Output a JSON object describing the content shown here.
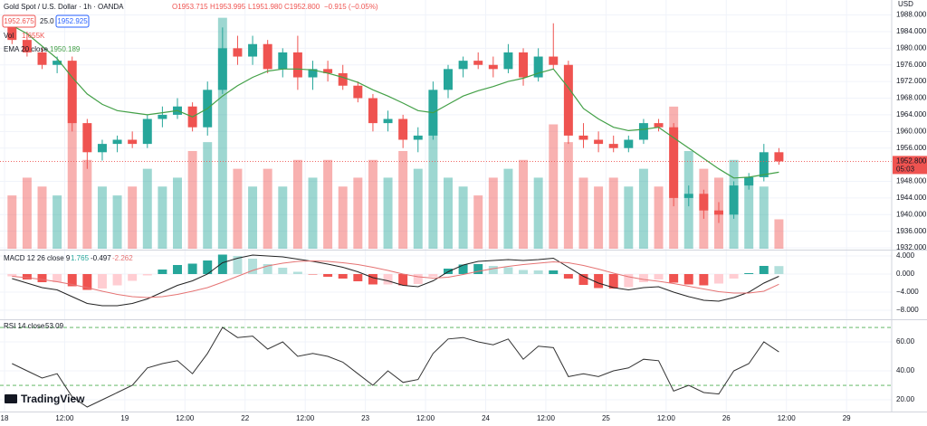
{
  "header": {
    "symbol": "Gold Spot / U.S. Dollar · 1h · OANDA",
    "open": "O1953.715",
    "high": "H1953.995",
    "low": "L1951.980",
    "close": "C1952.800",
    "change": "−0.915 (−0.05%)",
    "sell": "1952.675",
    "spread": "25.0",
    "buy": "1952.925",
    "currency": "USD",
    "countdown": "05:03",
    "logo": "TradingView"
  },
  "chart_data": [
    {
      "type": "candlestick",
      "title": "Gold Spot / U.S. Dollar · 1h · OANDA",
      "open": [
        1985,
        1982,
        1979,
        1976,
        1977,
        1962,
        1955,
        1957,
        1958,
        1957,
        1963,
        1964,
        1966,
        1961,
        1970,
        1980,
        1978,
        1981,
        1975,
        1979,
        1973,
        1975,
        1974,
        1971,
        1968,
        1962,
        1963,
        1958,
        1959,
        1970,
        1975,
        1977,
        1976,
        1975,
        1979,
        1973,
        1978,
        1976,
        1959,
        1958,
        1957,
        1956,
        1958,
        1962,
        1961,
        1944,
        1945,
        1941,
        1940,
        1947,
        1949,
        1955
      ],
      "high": [
        1987,
        1984,
        1980,
        1978,
        1978,
        1963,
        1958,
        1959,
        1960,
        1964,
        1966,
        1968,
        1967,
        1972,
        1985,
        1983,
        1983,
        1982,
        1980,
        1983,
        1977,
        1977,
        1976,
        1972,
        1969,
        1965,
        1964,
        1961,
        1972,
        1976,
        1978,
        1979,
        1978,
        1981,
        1980,
        1980,
        1986,
        1977,
        1962,
        1960,
        1959,
        1959,
        1963,
        1963,
        1962,
        1947,
        1946,
        1943,
        1948,
        1950,
        1957,
        1956
      ],
      "low": [
        1981,
        1978,
        1975,
        1974,
        1960,
        1951,
        1953,
        1955,
        1956,
        1956,
        1961,
        1963,
        1960,
        1959,
        1969,
        1976,
        1976,
        1974,
        1973,
        1970,
        1970,
        1972,
        1970,
        1967,
        1960,
        1960,
        1956,
        1955,
        1958,
        1968,
        1973,
        1975,
        1973,
        1974,
        1971,
        1972,
        1975,
        1957,
        1956,
        1955,
        1955,
        1955,
        1957,
        1960,
        1942,
        1942,
        1939,
        1938,
        1939,
        1946,
        1948,
        1952
      ],
      "close": [
        1982,
        1979,
        1976,
        1977,
        1962,
        1955,
        1957,
        1958,
        1957,
        1963,
        1964,
        1966,
        1961,
        1970,
        1980,
        1978,
        1981,
        1975,
        1979,
        1973,
        1975,
        1974,
        1971,
        1968,
        1962,
        1963,
        1958,
        1959,
        1970,
        1975,
        1977,
        1976,
        1975,
        1979,
        1973,
        1978,
        1976,
        1959,
        1958,
        1957,
        1956,
        1958,
        1962,
        1961,
        1944,
        1945,
        1941,
        1940,
        1947,
        1949,
        1955,
        1952.8
      ],
      "up_color": "#26a69a",
      "down_color": "#ef5350",
      "series": [
        {
          "name": "EMA 20 close",
          "color": "#43a047",
          "values": [
            1985.5,
            1983.5,
            1980.5,
            1977.5,
            1973,
            1969,
            1966.5,
            1965,
            1964.5,
            1964,
            1964.5,
            1965,
            1963.5,
            1965.5,
            1968.5,
            1971,
            1973,
            1974.5,
            1975,
            1975,
            1974.8,
            1974,
            1973,
            1971.8,
            1970,
            1968.5,
            1966.8,
            1965,
            1964.5,
            1966.5,
            1968.5,
            1969.8,
            1970.8,
            1972,
            1972.8,
            1974,
            1975,
            1970.5,
            1965.5,
            1963,
            1961,
            1960.2,
            1960.5,
            1961,
            1958.5,
            1956,
            1953.5,
            1951,
            1948.8,
            1949,
            1949.6,
            1950.189
          ]
        }
      ],
      "volume": {
        "name": "Vol",
        "last_label": "1.655K",
        "ylim": [
          0,
          14000
        ],
        "values": [
          3000,
          4000,
          3500,
          3000,
          9000,
          5000,
          3500,
          3000,
          3500,
          4500,
          3500,
          4000,
          5500,
          6000,
          13000,
          4500,
          3500,
          4500,
          3500,
          5000,
          4000,
          5000,
          3500,
          4000,
          5000,
          4000,
          5500,
          4500,
          7500,
          4000,
          3500,
          3000,
          4000,
          4500,
          5000,
          4000,
          7000,
          6000,
          4000,
          3500,
          4000,
          3500,
          4500,
          3500,
          8000,
          5500,
          4500,
          4000,
          5000,
          4000,
          3500,
          1655
        ]
      },
      "last_price": {
        "value": 1952.8,
        "label": "1952.800"
      },
      "ylim": [
        1931.8,
        1991.6
      ],
      "yticks": [
        {
          "value": 1988,
          "label": "1988.000"
        },
        {
          "value": 1984,
          "label": "1984.000"
        },
        {
          "value": 1980,
          "label": "1980.000"
        },
        {
          "value": 1976,
          "label": "1976.000"
        },
        {
          "value": 1972,
          "label": "1972.000"
        },
        {
          "value": 1968,
          "label": "1968.000"
        },
        {
          "value": 1964,
          "label": "1964.000"
        },
        {
          "value": 1960,
          "label": "1960.000"
        },
        {
          "value": 1956,
          "label": "1956.000"
        },
        {
          "value": 1948,
          "label": "1948.000"
        },
        {
          "value": 1944,
          "label": "1944.000"
        },
        {
          "value": 1940,
          "label": "1940.000"
        },
        {
          "value": 1936,
          "label": "1936.000"
        },
        {
          "value": 1932,
          "label": "1932.000"
        }
      ],
      "xlim": [
        -0.3,
        59
      ],
      "xticks": [
        {
          "value": 0,
          "label": "18"
        },
        {
          "value": 4,
          "label": "12:00"
        },
        {
          "value": 8,
          "label": "19"
        },
        {
          "value": 12,
          "label": "12:00"
        },
        {
          "value": 16,
          "label": "22"
        },
        {
          "value": 20,
          "label": "12:00"
        },
        {
          "value": 24,
          "label": "23"
        },
        {
          "value": 28,
          "label": "12:00"
        },
        {
          "value": 32,
          "label": "24"
        },
        {
          "value": 36,
          "label": "12:00"
        },
        {
          "value": 40,
          "label": "25"
        },
        {
          "value": 44,
          "label": "12:00"
        },
        {
          "value": 48,
          "label": "26"
        },
        {
          "value": 52,
          "label": "12:00"
        },
        {
          "value": 56,
          "label": "29"
        }
      ],
      "grid": true
    },
    {
      "type": "macd",
      "title": "MACD 12 26 close 9",
      "histogram": {
        "values": [
          -0.5,
          -1.2,
          -1.8,
          -1.8,
          -2.7,
          -3.5,
          -3.2,
          -2.5,
          -1.5,
          -0.3,
          1,
          2,
          2.3,
          3,
          4.3,
          4,
          3.4,
          2.2,
          1.4,
          0.5,
          -0.1,
          -0.6,
          -1,
          -1.6,
          -2.3,
          -2.3,
          -2.5,
          -2.2,
          -0.6,
          1.2,
          2.1,
          2.2,
          1.8,
          1.5,
          0.9,
          0.8,
          0.8,
          -1,
          -2.4,
          -3.1,
          -3.2,
          -2.9,
          -1.8,
          -1.2,
          -1.9,
          -2.3,
          -2.5,
          -2.1,
          -1,
          0.2,
          1.8,
          1.765
        ],
        "colors": [
          "#26a69a",
          "#b2dfdb",
          "#ffcdd2",
          "#ef5350"
        ]
      },
      "series": [
        {
          "name": "MACD",
          "color": "#222222",
          "values": [
            -1,
            -2,
            -3,
            -3.5,
            -5,
            -6.5,
            -7,
            -7,
            -6.5,
            -5.5,
            -4,
            -2.5,
            -1.5,
            0,
            2.5,
            3.5,
            4.2,
            4,
            3.8,
            3.3,
            2.8,
            2.2,
            1.5,
            0.5,
            -0.8,
            -1.5,
            -2.5,
            -2.8,
            -1.5,
            0.5,
            2,
            2.8,
            3,
            3.2,
            3,
            3.2,
            3.5,
            1.5,
            -0.5,
            -2,
            -3,
            -3.5,
            -3,
            -2.8,
            -4,
            -5,
            -5.8,
            -6,
            -5.2,
            -4,
            -2,
            -0.497
          ]
        },
        {
          "name": "Signal",
          "color": "#e57373",
          "values": [
            -0.5,
            -0.8,
            -1.2,
            -1.7,
            -2.3,
            -3,
            -3.8,
            -4.5,
            -5,
            -5.2,
            -5,
            -4.5,
            -3.8,
            -3,
            -1.8,
            -0.5,
            0.8,
            1.8,
            2.4,
            2.8,
            2.9,
            2.8,
            2.5,
            2.1,
            1.5,
            0.8,
            0,
            -0.6,
            -0.9,
            -0.7,
            -0.1,
            0.6,
            1.2,
            1.7,
            2.1,
            2.4,
            2.7,
            2.5,
            1.9,
            1.1,
            0.2,
            -0.6,
            -1.2,
            -1.6,
            -2.1,
            -2.7,
            -3.3,
            -3.9,
            -4.2,
            -4.2,
            -3.8,
            -2.262
          ]
        }
      ],
      "ylim": [
        -9.8,
        5
      ],
      "yticks": [
        {
          "value": 4,
          "label": "4.000"
        },
        {
          "value": 0,
          "label": "0.000"
        },
        {
          "value": -4,
          "label": "−4.000"
        },
        {
          "value": -8,
          "label": "−8.000"
        }
      ]
    },
    {
      "type": "rsi",
      "title": "RSI 14 close",
      "series": [
        {
          "name": "RSI",
          "color": "#333333",
          "values": [
            45,
            40,
            35,
            38,
            22,
            15,
            20,
            25,
            30,
            42,
            45,
            47,
            38,
            52,
            70,
            63,
            64,
            55,
            60,
            50,
            52,
            50,
            46,
            38,
            30,
            40,
            32,
            34,
            52,
            62,
            63,
            60,
            58,
            62,
            48,
            57,
            56,
            36,
            38,
            36,
            40,
            42,
            48,
            47,
            26,
            30,
            25,
            24,
            40,
            45,
            60,
            53.09
          ]
        }
      ],
      "bands": [
        70,
        30
      ],
      "ylim": [
        11.9,
        74.4
      ],
      "yticks": [
        {
          "value": 60,
          "label": "60.00"
        },
        {
          "value": 40,
          "label": "40.00"
        },
        {
          "value": 20,
          "label": "20.00"
        }
      ]
    }
  ]
}
